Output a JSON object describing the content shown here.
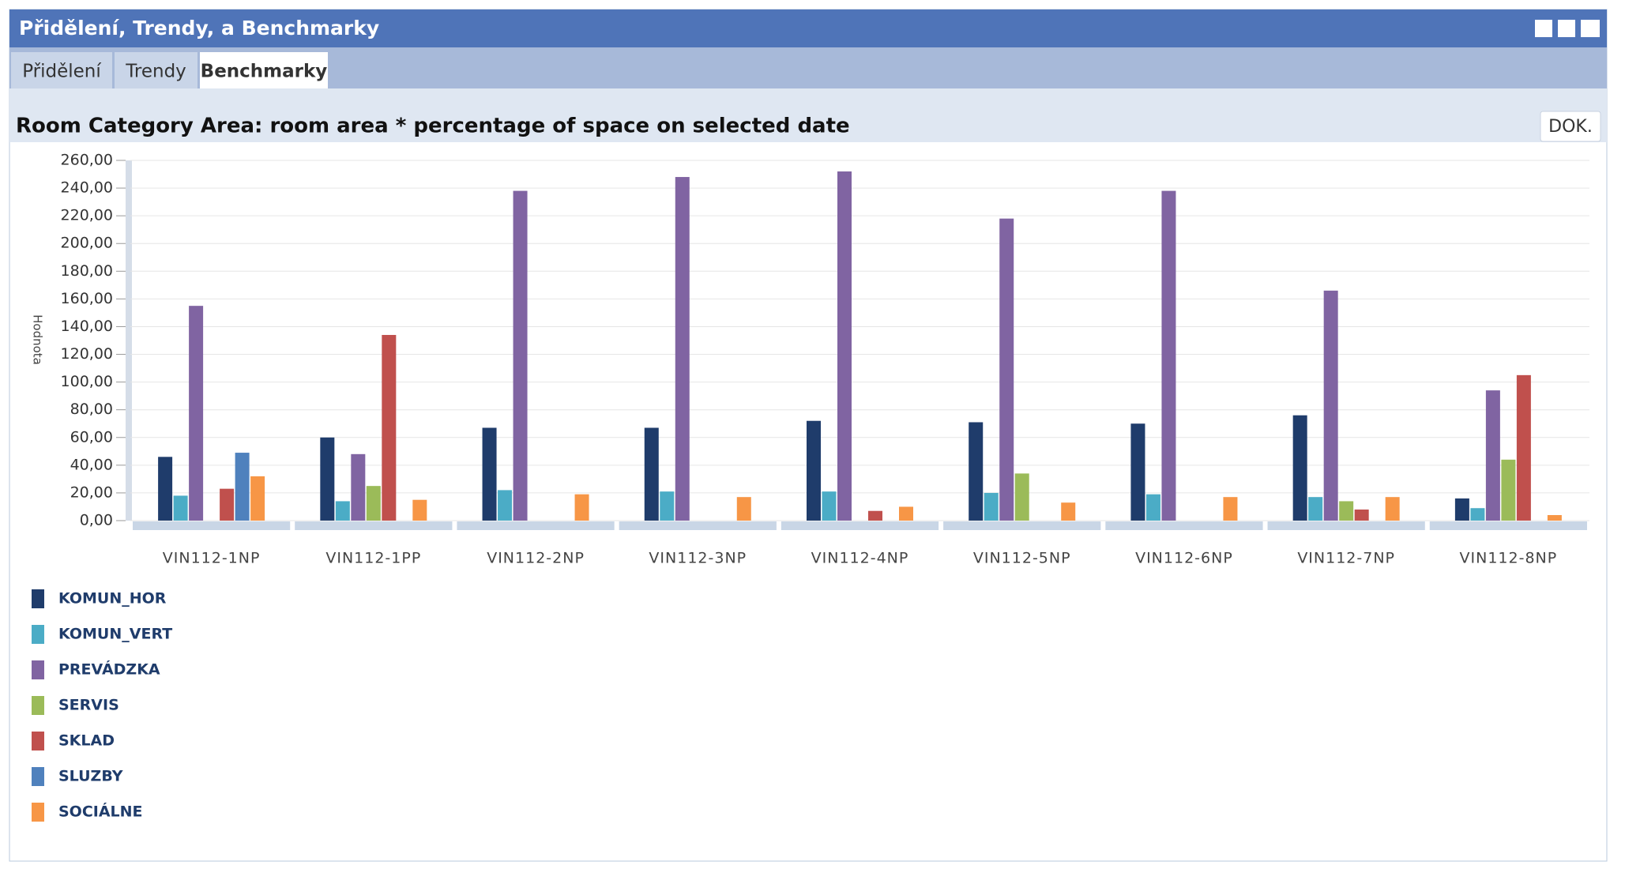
{
  "header": {
    "title": "Přidělení, Trendy, a Benchmarky"
  },
  "tabs": [
    "Přidělení",
    "Trendy",
    "Benchmarky"
  ],
  "button": "DOK.",
  "chart_data": {
    "type": "bar",
    "title": "Room Category Area: room area * percentage of space on selected date",
    "y_label": "Hodnota",
    "categories": [
      "VIN112-1NP",
      "VIN112-1PP",
      "VIN112-2NP",
      "VIN112-3NP",
      "VIN112-4NP",
      "VIN112-5NP",
      "VIN112-6NP",
      "VIN112-7NP",
      "VIN112-8NP"
    ],
    "series": [
      {
        "name": "KOMUN_HOR",
        "color": "#1f3c6b",
        "values": [
          46,
          60,
          67,
          67,
          72,
          71,
          70,
          76,
          16
        ]
      },
      {
        "name": "KOMUN_VERT",
        "color": "#4bacc6",
        "values": [
          18,
          14,
          22,
          21,
          21,
          20,
          19,
          17,
          9
        ]
      },
      {
        "name": "PREVÁDZKA",
        "color": "#8064a2",
        "values": [
          155,
          48,
          238,
          248,
          252,
          218,
          238,
          166,
          94
        ]
      },
      {
        "name": "SERVIS",
        "color": "#9bbb59",
        "values": [
          null,
          25,
          null,
          null,
          null,
          34,
          null,
          14,
          44
        ]
      },
      {
        "name": "SKLAD",
        "color": "#c0504d",
        "values": [
          23,
          134,
          null,
          null,
          7,
          null,
          null,
          8,
          105
        ]
      },
      {
        "name": "SLUZBY",
        "color": "#4f81bd",
        "values": [
          49,
          null,
          null,
          null,
          null,
          null,
          null,
          null,
          null
        ]
      },
      {
        "name": "SOCIÁLNE",
        "color": "#f79646",
        "values": [
          32,
          15,
          19,
          17,
          10,
          13,
          17,
          17,
          4
        ]
      }
    ],
    "ylim": [
      0,
      260
    ],
    "yticks": [
      {
        "value": 0,
        "label": "0,00"
      },
      {
        "value": 20,
        "label": "20,00"
      },
      {
        "value": 40,
        "label": "40,00"
      },
      {
        "value": 60,
        "label": "60,00"
      },
      {
        "value": 80,
        "label": "80,00"
      },
      {
        "value": 100,
        "label": "100,00"
      },
      {
        "value": 120,
        "label": "120,00"
      },
      {
        "value": 140,
        "label": "140,00"
      },
      {
        "value": 160,
        "label": "160,00"
      },
      {
        "value": 180,
        "label": "180,00"
      },
      {
        "value": 200,
        "label": "200,00"
      },
      {
        "value": 220,
        "label": "220,00"
      },
      {
        "value": 240,
        "label": "240,00"
      },
      {
        "value": 260,
        "label": "260,00"
      }
    ],
    "grid": true
  }
}
